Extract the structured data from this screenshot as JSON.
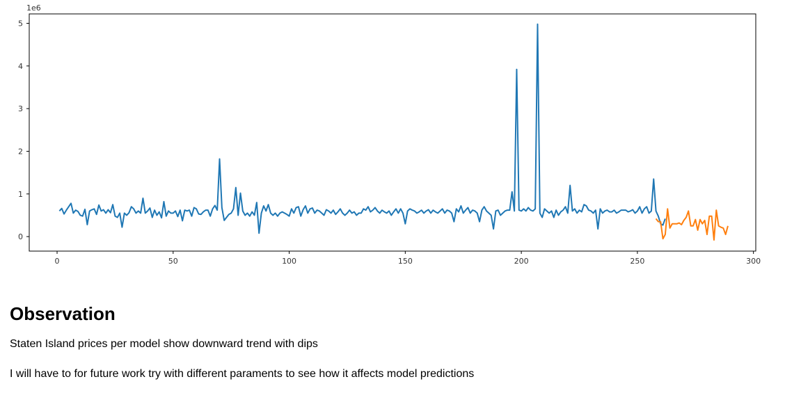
{
  "chart_data": {
    "type": "line",
    "title": "",
    "xlabel": "",
    "ylabel": "",
    "y_offset_label": "1e6",
    "xlim": [
      -12,
      301
    ],
    "ylim": [
      -0.34,
      5.22
    ],
    "x_ticks": [
      0,
      50,
      100,
      150,
      200,
      250,
      300
    ],
    "x_tick_labels": [
      "0",
      "50",
      "100",
      "150",
      "200",
      "250",
      "300"
    ],
    "y_ticks": [
      0,
      1,
      2,
      3,
      4,
      5
    ],
    "y_tick_labels": [
      "0",
      "1",
      "2",
      "3",
      "4",
      "5"
    ],
    "grid": false,
    "legend": "none",
    "series": [
      {
        "color": "#1f77b4",
        "x_start": 1,
        "values": [
          0.6,
          0.66,
          0.53,
          0.62,
          0.7,
          0.78,
          0.55,
          0.62,
          0.59,
          0.5,
          0.48,
          0.64,
          0.28,
          0.6,
          0.63,
          0.65,
          0.52,
          0.74,
          0.6,
          0.63,
          0.55,
          0.63,
          0.56,
          0.75,
          0.48,
          0.45,
          0.55,
          0.22,
          0.55,
          0.5,
          0.56,
          0.7,
          0.65,
          0.55,
          0.6,
          0.55,
          0.9,
          0.55,
          0.6,
          0.67,
          0.45,
          0.62,
          0.5,
          0.58,
          0.44,
          0.82,
          0.48,
          0.6,
          0.55,
          0.55,
          0.6,
          0.47,
          0.62,
          0.37,
          0.62,
          0.6,
          0.62,
          0.48,
          0.68,
          0.65,
          0.53,
          0.52,
          0.58,
          0.62,
          0.62,
          0.48,
          0.65,
          0.73,
          0.62,
          1.82,
          0.68,
          0.38,
          0.45,
          0.52,
          0.55,
          0.65,
          1.15,
          0.5,
          1.02,
          0.6,
          0.5,
          0.55,
          0.48,
          0.58,
          0.5,
          0.8,
          0.08,
          0.55,
          0.72,
          0.6,
          0.75,
          0.55,
          0.5,
          0.55,
          0.48,
          0.55,
          0.58,
          0.55,
          0.52,
          0.48,
          0.65,
          0.55,
          0.68,
          0.7,
          0.48,
          0.63,
          0.72,
          0.55,
          0.65,
          0.67,
          0.55,
          0.62,
          0.6,
          0.55,
          0.5,
          0.63,
          0.6,
          0.55,
          0.62,
          0.52,
          0.58,
          0.65,
          0.55,
          0.5,
          0.55,
          0.62,
          0.55,
          0.58,
          0.5,
          0.55,
          0.55,
          0.65,
          0.62,
          0.7,
          0.58,
          0.62,
          0.68,
          0.6,
          0.55,
          0.62,
          0.58,
          0.55,
          0.6,
          0.5,
          0.58,
          0.65,
          0.55,
          0.65,
          0.55,
          0.3,
          0.6,
          0.65,
          0.62,
          0.6,
          0.55,
          0.58,
          0.62,
          0.55,
          0.6,
          0.63,
          0.55,
          0.62,
          0.58,
          0.55,
          0.6,
          0.65,
          0.55,
          0.62,
          0.6,
          0.55,
          0.35,
          0.65,
          0.58,
          0.72,
          0.55,
          0.62,
          0.68,
          0.55,
          0.62,
          0.6,
          0.55,
          0.35,
          0.62,
          0.7,
          0.6,
          0.55,
          0.5,
          0.18,
          0.6,
          0.62,
          0.5,
          0.55,
          0.6,
          0.62,
          0.62,
          1.05,
          0.6,
          3.92,
          0.62,
          0.6,
          0.65,
          0.6,
          0.68,
          0.62,
          0.6,
          0.65,
          4.98,
          0.55,
          0.45,
          0.65,
          0.6,
          0.55,
          0.6,
          0.45,
          0.62,
          0.5,
          0.58,
          0.62,
          0.7,
          0.55,
          1.2,
          0.6,
          0.65,
          0.55,
          0.62,
          0.58,
          0.75,
          0.72,
          0.62,
          0.6,
          0.55,
          0.62,
          0.18,
          0.65,
          0.55,
          0.6,
          0.62,
          0.58,
          0.58,
          0.62,
          0.55,
          0.58,
          0.62,
          0.62,
          0.62,
          0.58,
          0.6,
          0.63,
          0.55,
          0.6,
          0.7,
          0.55,
          0.65,
          0.7,
          0.55,
          0.6,
          1.35,
          0.6,
          0.48,
          0.3,
          0.27,
          0.42
        ],
        "line_width": 2
      },
      {
        "color": "#ff7f0e",
        "x_start": 258,
        "values": [
          0.42,
          0.35,
          0.35,
          -0.05,
          0.05,
          0.65,
          0.2,
          0.3,
          0.3,
          0.3,
          0.32,
          0.28,
          0.38,
          0.45,
          0.6,
          0.25,
          0.25,
          0.4,
          0.15,
          0.4,
          0.3,
          0.38,
          0.05,
          0.48,
          0.48,
          -0.08,
          0.62,
          0.25,
          0.22,
          0.2,
          0.05,
          0.25
        ],
        "line_width": 2
      }
    ]
  },
  "text": {
    "heading": "Observation",
    "paragraph1": "Staten Island prices per model show downward trend with dips",
    "paragraph2": "I will have to for future work try with different paraments to see how it affects model predictions"
  }
}
